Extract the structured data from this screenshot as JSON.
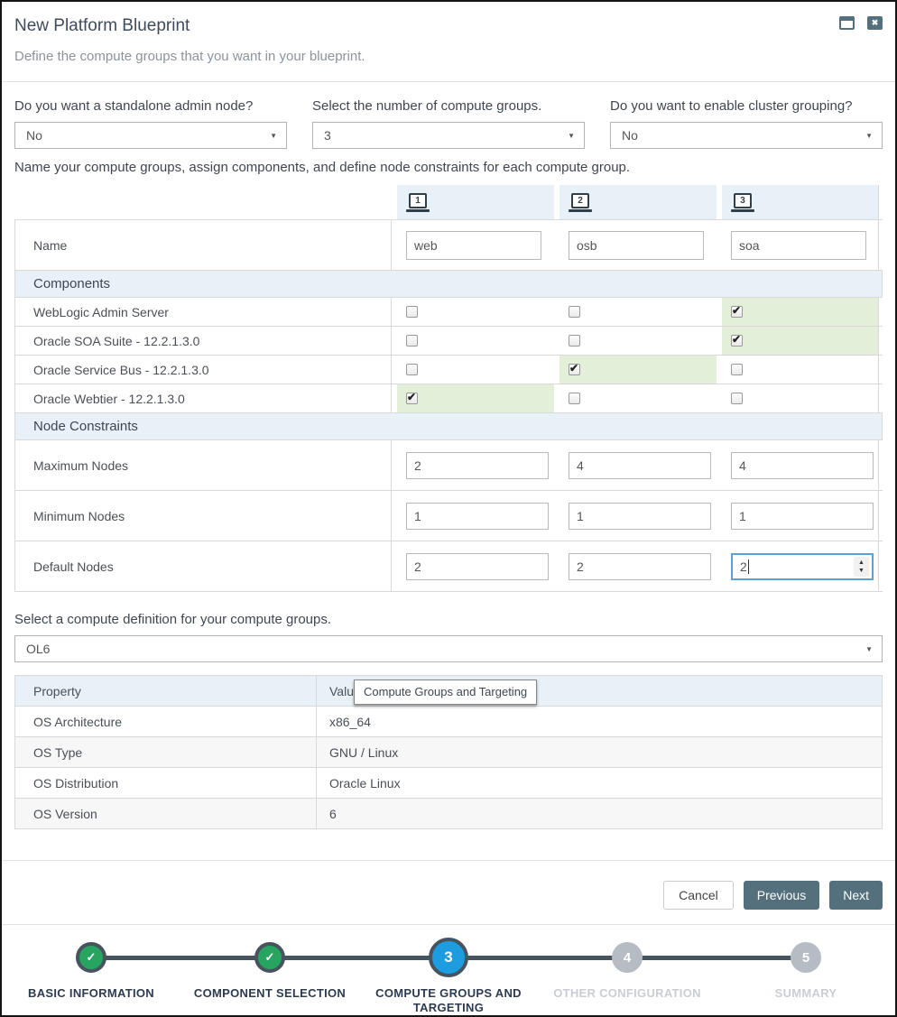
{
  "colors": {
    "accent_slate": "#54707c",
    "stepper_connector": "#47535e",
    "step_completed_green": "#27a45f",
    "step_current_blue": "#1d9ce0",
    "step_upcoming_gray": "#b6bcc3",
    "section_header_blue": "#e9f1f8",
    "checked_cell_green": "#e3efd9",
    "focus_border_blue": "#5b9fd4"
  },
  "dialog": {
    "title": "New Platform Blueprint",
    "subtitle": "Define the compute groups that you want in your blueprint."
  },
  "icons": {
    "maximize": "maximize-window",
    "close": "x"
  },
  "questions": [
    {
      "label": "Do you want a standalone admin node?",
      "value": "No"
    },
    {
      "label": "Select the number of compute groups.",
      "value": "3"
    },
    {
      "label": "Do you want to enable cluster grouping?",
      "value": "No"
    }
  ],
  "groups_intro": "Name your compute groups, assign components, and define node constraints for each compute group.",
  "compute_table": {
    "group_numbers": [
      "1",
      "2",
      "3"
    ],
    "name_label": "Name",
    "group_names": [
      "web",
      "osb",
      "soa"
    ],
    "components_header": "Components",
    "components": [
      {
        "label": "WebLogic Admin Server",
        "checked": [
          false,
          false,
          true
        ]
      },
      {
        "label": "Oracle SOA Suite - 12.2.1.3.0",
        "checked": [
          false,
          false,
          true
        ]
      },
      {
        "label": "Oracle Service Bus - 12.2.1.3.0",
        "checked": [
          false,
          true,
          false
        ]
      },
      {
        "label": "Oracle Webtier - 12.2.1.3.0",
        "checked": [
          true,
          false,
          false
        ]
      }
    ],
    "node_constraints_header": "Node Constraints",
    "constraints": [
      {
        "label": "Maximum Nodes",
        "values": [
          "2",
          "4",
          "4"
        ]
      },
      {
        "label": "Minimum Nodes",
        "values": [
          "1",
          "1",
          "1"
        ]
      },
      {
        "label": "Default Nodes",
        "values": [
          "2",
          "2",
          "2"
        ]
      }
    ]
  },
  "compute_definition": {
    "label": "Select a compute definition for your compute groups.",
    "value": "OL6"
  },
  "property_table": {
    "headers": {
      "property": "Property",
      "value": "Value"
    },
    "rows": [
      {
        "property": "OS Architecture",
        "value": "x86_64"
      },
      {
        "property": "OS Type",
        "value": "GNU / Linux"
      },
      {
        "property": "OS Distribution",
        "value": "Oracle Linux"
      },
      {
        "property": "OS Version",
        "value": "6"
      }
    ]
  },
  "tooltip": "Compute Groups and Targeting",
  "footer": {
    "cancel_label": "Cancel",
    "previous_label": "Previous",
    "next_label": "Next"
  },
  "stepper": {
    "steps": [
      {
        "number": "1",
        "label": "BASIC INFORMATION",
        "state": "completed",
        "glyph": "✓"
      },
      {
        "number": "2",
        "label": "COMPONENT SELECTION",
        "state": "completed",
        "glyph": "✓"
      },
      {
        "number": "3",
        "label": "COMPUTE GROUPS AND TARGETING",
        "state": "current",
        "glyph": "3"
      },
      {
        "number": "4",
        "label": "OTHER CONFIGURATION",
        "state": "upcoming",
        "glyph": "4"
      },
      {
        "number": "5",
        "label": "SUMMARY",
        "state": "upcoming",
        "glyph": "5"
      }
    ]
  }
}
